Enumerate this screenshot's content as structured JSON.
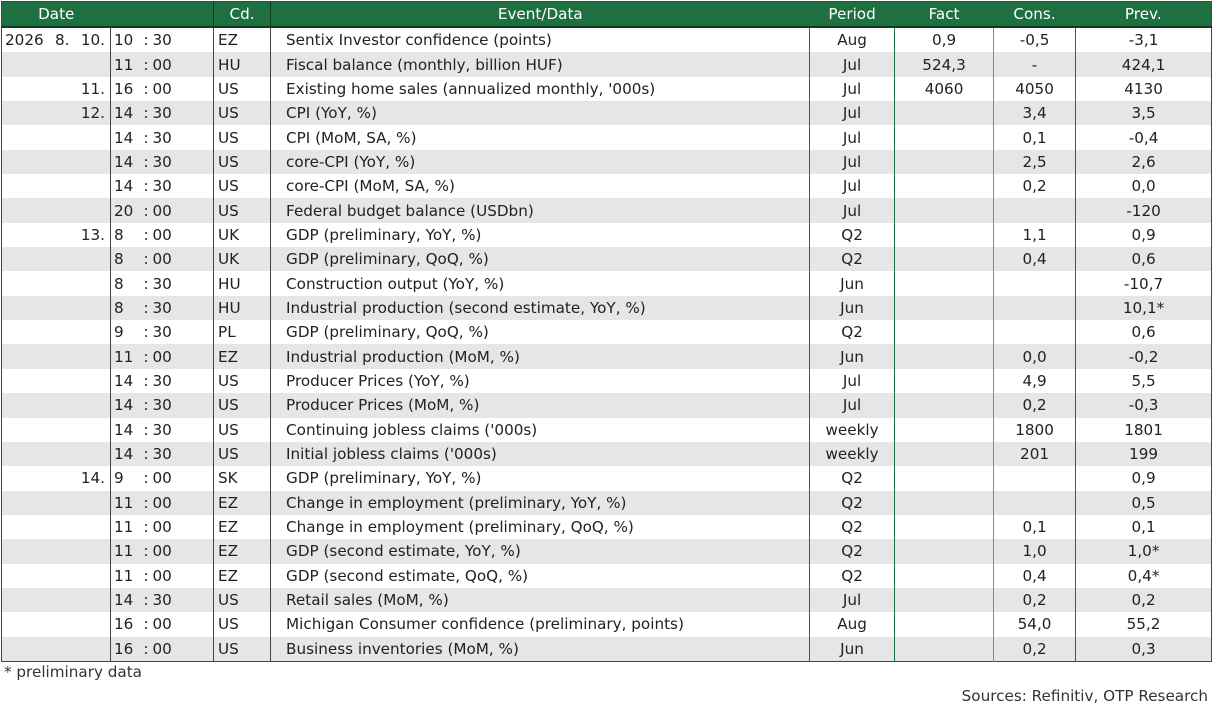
{
  "header": {
    "date": "Date",
    "code": "Cd.",
    "event": "Event/Data",
    "period": "Period",
    "fact": "Fact",
    "cons": "Cons.",
    "prev": "Prev."
  },
  "rows": [
    {
      "year": "2026",
      "month": "8.",
      "day": "10.",
      "hour": "10",
      "min": "30",
      "code": "EZ",
      "event": "Sentix Investor confidence (points)",
      "period": "Aug",
      "fact": "0,9",
      "cons": "-0,5",
      "prev": "-3,1"
    },
    {
      "year": "",
      "month": "",
      "day": "",
      "hour": "11",
      "min": "00",
      "code": "HU",
      "event": "Fiscal balance (monthly, billion HUF)",
      "period": "Jul",
      "fact": "524,3",
      "cons": "-",
      "prev": "424,1"
    },
    {
      "year": "",
      "month": "",
      "day": "11.",
      "hour": "16",
      "min": "00",
      "code": "US",
      "event": "Existing home sales (annualized monthly, '000s)",
      "period": "Jul",
      "fact": "4060",
      "cons": "4050",
      "prev": "4130"
    },
    {
      "year": "",
      "month": "",
      "day": "12.",
      "hour": "14",
      "min": "30",
      "code": "US",
      "event": "CPI (YoY, %)",
      "period": "Jul",
      "fact": "",
      "cons": "3,4",
      "prev": "3,5"
    },
    {
      "year": "",
      "month": "",
      "day": "",
      "hour": "14",
      "min": "30",
      "code": "US",
      "event": "CPI (MoM, SA, %)",
      "period": "Jul",
      "fact": "",
      "cons": "0,1",
      "prev": "-0,4"
    },
    {
      "year": "",
      "month": "",
      "day": "",
      "hour": "14",
      "min": "30",
      "code": "US",
      "event": "core-CPI (YoY, %)",
      "period": "Jul",
      "fact": "",
      "cons": "2,5",
      "prev": "2,6"
    },
    {
      "year": "",
      "month": "",
      "day": "",
      "hour": "14",
      "min": "30",
      "code": "US",
      "event": "core-CPI (MoM, SA, %)",
      "period": "Jul",
      "fact": "",
      "cons": "0,2",
      "prev": "0,0"
    },
    {
      "year": "",
      "month": "",
      "day": "",
      "hour": "20",
      "min": "00",
      "code": "US",
      "event": "Federal budget balance (USDbn)",
      "period": "Jul",
      "fact": "",
      "cons": "",
      "prev": "-120"
    },
    {
      "year": "",
      "month": "",
      "day": "13.",
      "hour": "8",
      "min": "00",
      "code": "UK",
      "event": "GDP (preliminary, YoY, %)",
      "period": "Q2",
      "fact": "",
      "cons": "1,1",
      "prev": "0,9"
    },
    {
      "year": "",
      "month": "",
      "day": "",
      "hour": "8",
      "min": "00",
      "code": "UK",
      "event": "GDP (preliminary, QoQ, %)",
      "period": "Q2",
      "fact": "",
      "cons": "0,4",
      "prev": "0,6"
    },
    {
      "year": "",
      "month": "",
      "day": "",
      "hour": "8",
      "min": "30",
      "code": "HU",
      "event": "Construction output (YoY, %)",
      "period": "Jun",
      "fact": "",
      "cons": "",
      "prev": "-10,7"
    },
    {
      "year": "",
      "month": "",
      "day": "",
      "hour": "8",
      "min": "30",
      "code": "HU",
      "event": "Industrial production (second estimate, YoY, %)",
      "period": "Jun",
      "fact": "",
      "cons": "",
      "prev": "10,1*"
    },
    {
      "year": "",
      "month": "",
      "day": "",
      "hour": "9",
      "min": "30",
      "code": "PL",
      "event": "GDP (preliminary, QoQ, %)",
      "period": "Q2",
      "fact": "",
      "cons": "",
      "prev": "0,6"
    },
    {
      "year": "",
      "month": "",
      "day": "",
      "hour": "11",
      "min": "00",
      "code": "EZ",
      "event": "Industrial production (MoM, %)",
      "period": "Jun",
      "fact": "",
      "cons": "0,0",
      "prev": "-0,2"
    },
    {
      "year": "",
      "month": "",
      "day": "",
      "hour": "14",
      "min": "30",
      "code": "US",
      "event": "Producer Prices (YoY, %)",
      "period": "Jul",
      "fact": "",
      "cons": "4,9",
      "prev": "5,5"
    },
    {
      "year": "",
      "month": "",
      "day": "",
      "hour": "14",
      "min": "30",
      "code": "US",
      "event": "Producer Prices (MoM, %)",
      "period": "Jul",
      "fact": "",
      "cons": "0,2",
      "prev": "-0,3"
    },
    {
      "year": "",
      "month": "",
      "day": "",
      "hour": "14",
      "min": "30",
      "code": "US",
      "event": "Continuing jobless claims ('000s)",
      "period": "weekly",
      "fact": "",
      "cons": "1800",
      "prev": "1801"
    },
    {
      "year": "",
      "month": "",
      "day": "",
      "hour": "14",
      "min": "30",
      "code": "US",
      "event": "Initial jobless claims ('000s)",
      "period": "weekly",
      "fact": "",
      "cons": "201",
      "prev": "199"
    },
    {
      "year": "",
      "month": "",
      "day": "14.",
      "hour": "9",
      "min": "00",
      "code": "SK",
      "event": "GDP (preliminary, YoY, %)",
      "period": "Q2",
      "fact": "",
      "cons": "",
      "prev": "0,9"
    },
    {
      "year": "",
      "month": "",
      "day": "",
      "hour": "11",
      "min": "00",
      "code": "EZ",
      "event": "Change in employment (preliminary, YoY, %)",
      "period": "Q2",
      "fact": "",
      "cons": "",
      "prev": "0,5"
    },
    {
      "year": "",
      "month": "",
      "day": "",
      "hour": "11",
      "min": "00",
      "code": "EZ",
      "event": "Change in employment (preliminary, QoQ, %)",
      "period": "Q2",
      "fact": "",
      "cons": "0,1",
      "prev": "0,1"
    },
    {
      "year": "",
      "month": "",
      "day": "",
      "hour": "11",
      "min": "00",
      "code": "EZ",
      "event": "GDP (second estimate, YoY, %)",
      "period": "Q2",
      "fact": "",
      "cons": "1,0",
      "prev": "1,0*"
    },
    {
      "year": "",
      "month": "",
      "day": "",
      "hour": "11",
      "min": "00",
      "code": "EZ",
      "event": "GDP (second estimate, QoQ, %)",
      "period": "Q2",
      "fact": "",
      "cons": "0,4",
      "prev": "0,4*"
    },
    {
      "year": "",
      "month": "",
      "day": "",
      "hour": "14",
      "min": "30",
      "code": "US",
      "event": "Retail sales (MoM, %)",
      "period": "Jul",
      "fact": "",
      "cons": "0,2",
      "prev": "0,2"
    },
    {
      "year": "",
      "month": "",
      "day": "",
      "hour": "16",
      "min": "00",
      "code": "US",
      "event": "Michigan Consumer confidence (preliminary, points)",
      "period": "Aug",
      "fact": "",
      "cons": "54,0",
      "prev": "55,2"
    },
    {
      "year": "",
      "month": "",
      "day": "",
      "hour": "16",
      "min": "00",
      "code": "US",
      "event": "Business inventories (MoM, %)",
      "period": "Jun",
      "fact": "",
      "cons": "0,2",
      "prev": "0,3"
    }
  ],
  "footnote": "* preliminary data",
  "sources": "Sources: Refinitiv, OTP Research",
  "colors": {
    "header_bg": "#1e7040",
    "header_text": "#ffffff",
    "stripe": "#e6e6e6"
  }
}
